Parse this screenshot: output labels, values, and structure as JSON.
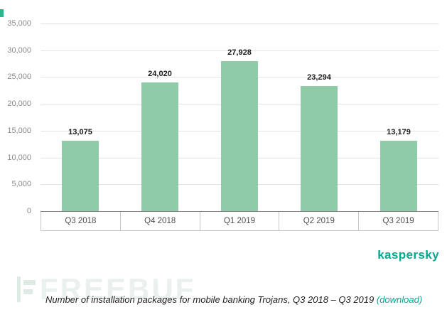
{
  "chart_data": {
    "type": "bar",
    "categories": [
      "Q3 2018",
      "Q4 2018",
      "Q1 2019",
      "Q2 2019",
      "Q3 2019"
    ],
    "values": [
      13075,
      24020,
      27928,
      23294,
      13179
    ],
    "value_labels": [
      "13,075",
      "24,020",
      "27,928",
      "23,294",
      "13,179"
    ],
    "title": "",
    "xlabel": "",
    "ylabel": "",
    "ylim": [
      0,
      35000
    ],
    "yticks": [
      0,
      5000,
      10000,
      15000,
      20000,
      25000,
      30000,
      35000
    ],
    "ytick_labels": [
      "0",
      "5,000",
      "10,000",
      "15,000",
      "20,000",
      "25,000",
      "30,000",
      "35,000"
    ],
    "grid": true,
    "legend": false,
    "bar_color": "#8fcba6"
  },
  "branding": {
    "logo_text": "kaspersky",
    "logo_color": "#00a88e"
  },
  "watermark": {
    "text": "FREEBUF"
  },
  "caption": {
    "text": "Number of installation packages for mobile banking Trojans, Q3 2018 – Q3 2019",
    "link_label": "(download)"
  }
}
